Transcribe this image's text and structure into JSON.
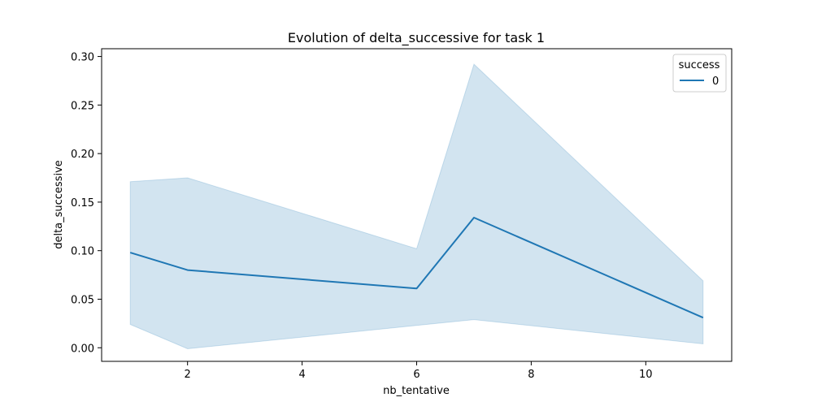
{
  "chart_data": {
    "type": "line",
    "title": "Evolution of delta_successive for task 1",
    "xlabel": "nb_tentative",
    "ylabel": "delta_successive",
    "xlim": [
      0.5,
      11.5
    ],
    "ylim": [
      -0.014,
      0.308
    ],
    "xticks": [
      2,
      4,
      6,
      8,
      10
    ],
    "xtick_labels": [
      "2",
      "4",
      "6",
      "8",
      "10"
    ],
    "yticks": [
      0.0,
      0.05,
      0.1,
      0.15,
      0.2,
      0.25,
      0.3
    ],
    "ytick_labels": [
      "0.00",
      "0.05",
      "0.10",
      "0.15",
      "0.20",
      "0.25",
      "0.30"
    ],
    "grid": false,
    "legend": {
      "title": "success",
      "placement": "top-right",
      "entries": [
        "0"
      ]
    },
    "series": [
      {
        "name": "0",
        "color": "#1f77b4",
        "x": [
          1,
          2,
          6,
          7,
          11
        ],
        "y": [
          0.098,
          0.08,
          0.061,
          0.134,
          0.031
        ],
        "ci_lower": [
          0.024,
          -0.001,
          0.023,
          0.029,
          0.004
        ],
        "ci_upper": [
          0.171,
          0.175,
          0.102,
          0.292,
          0.069
        ]
      }
    ]
  }
}
